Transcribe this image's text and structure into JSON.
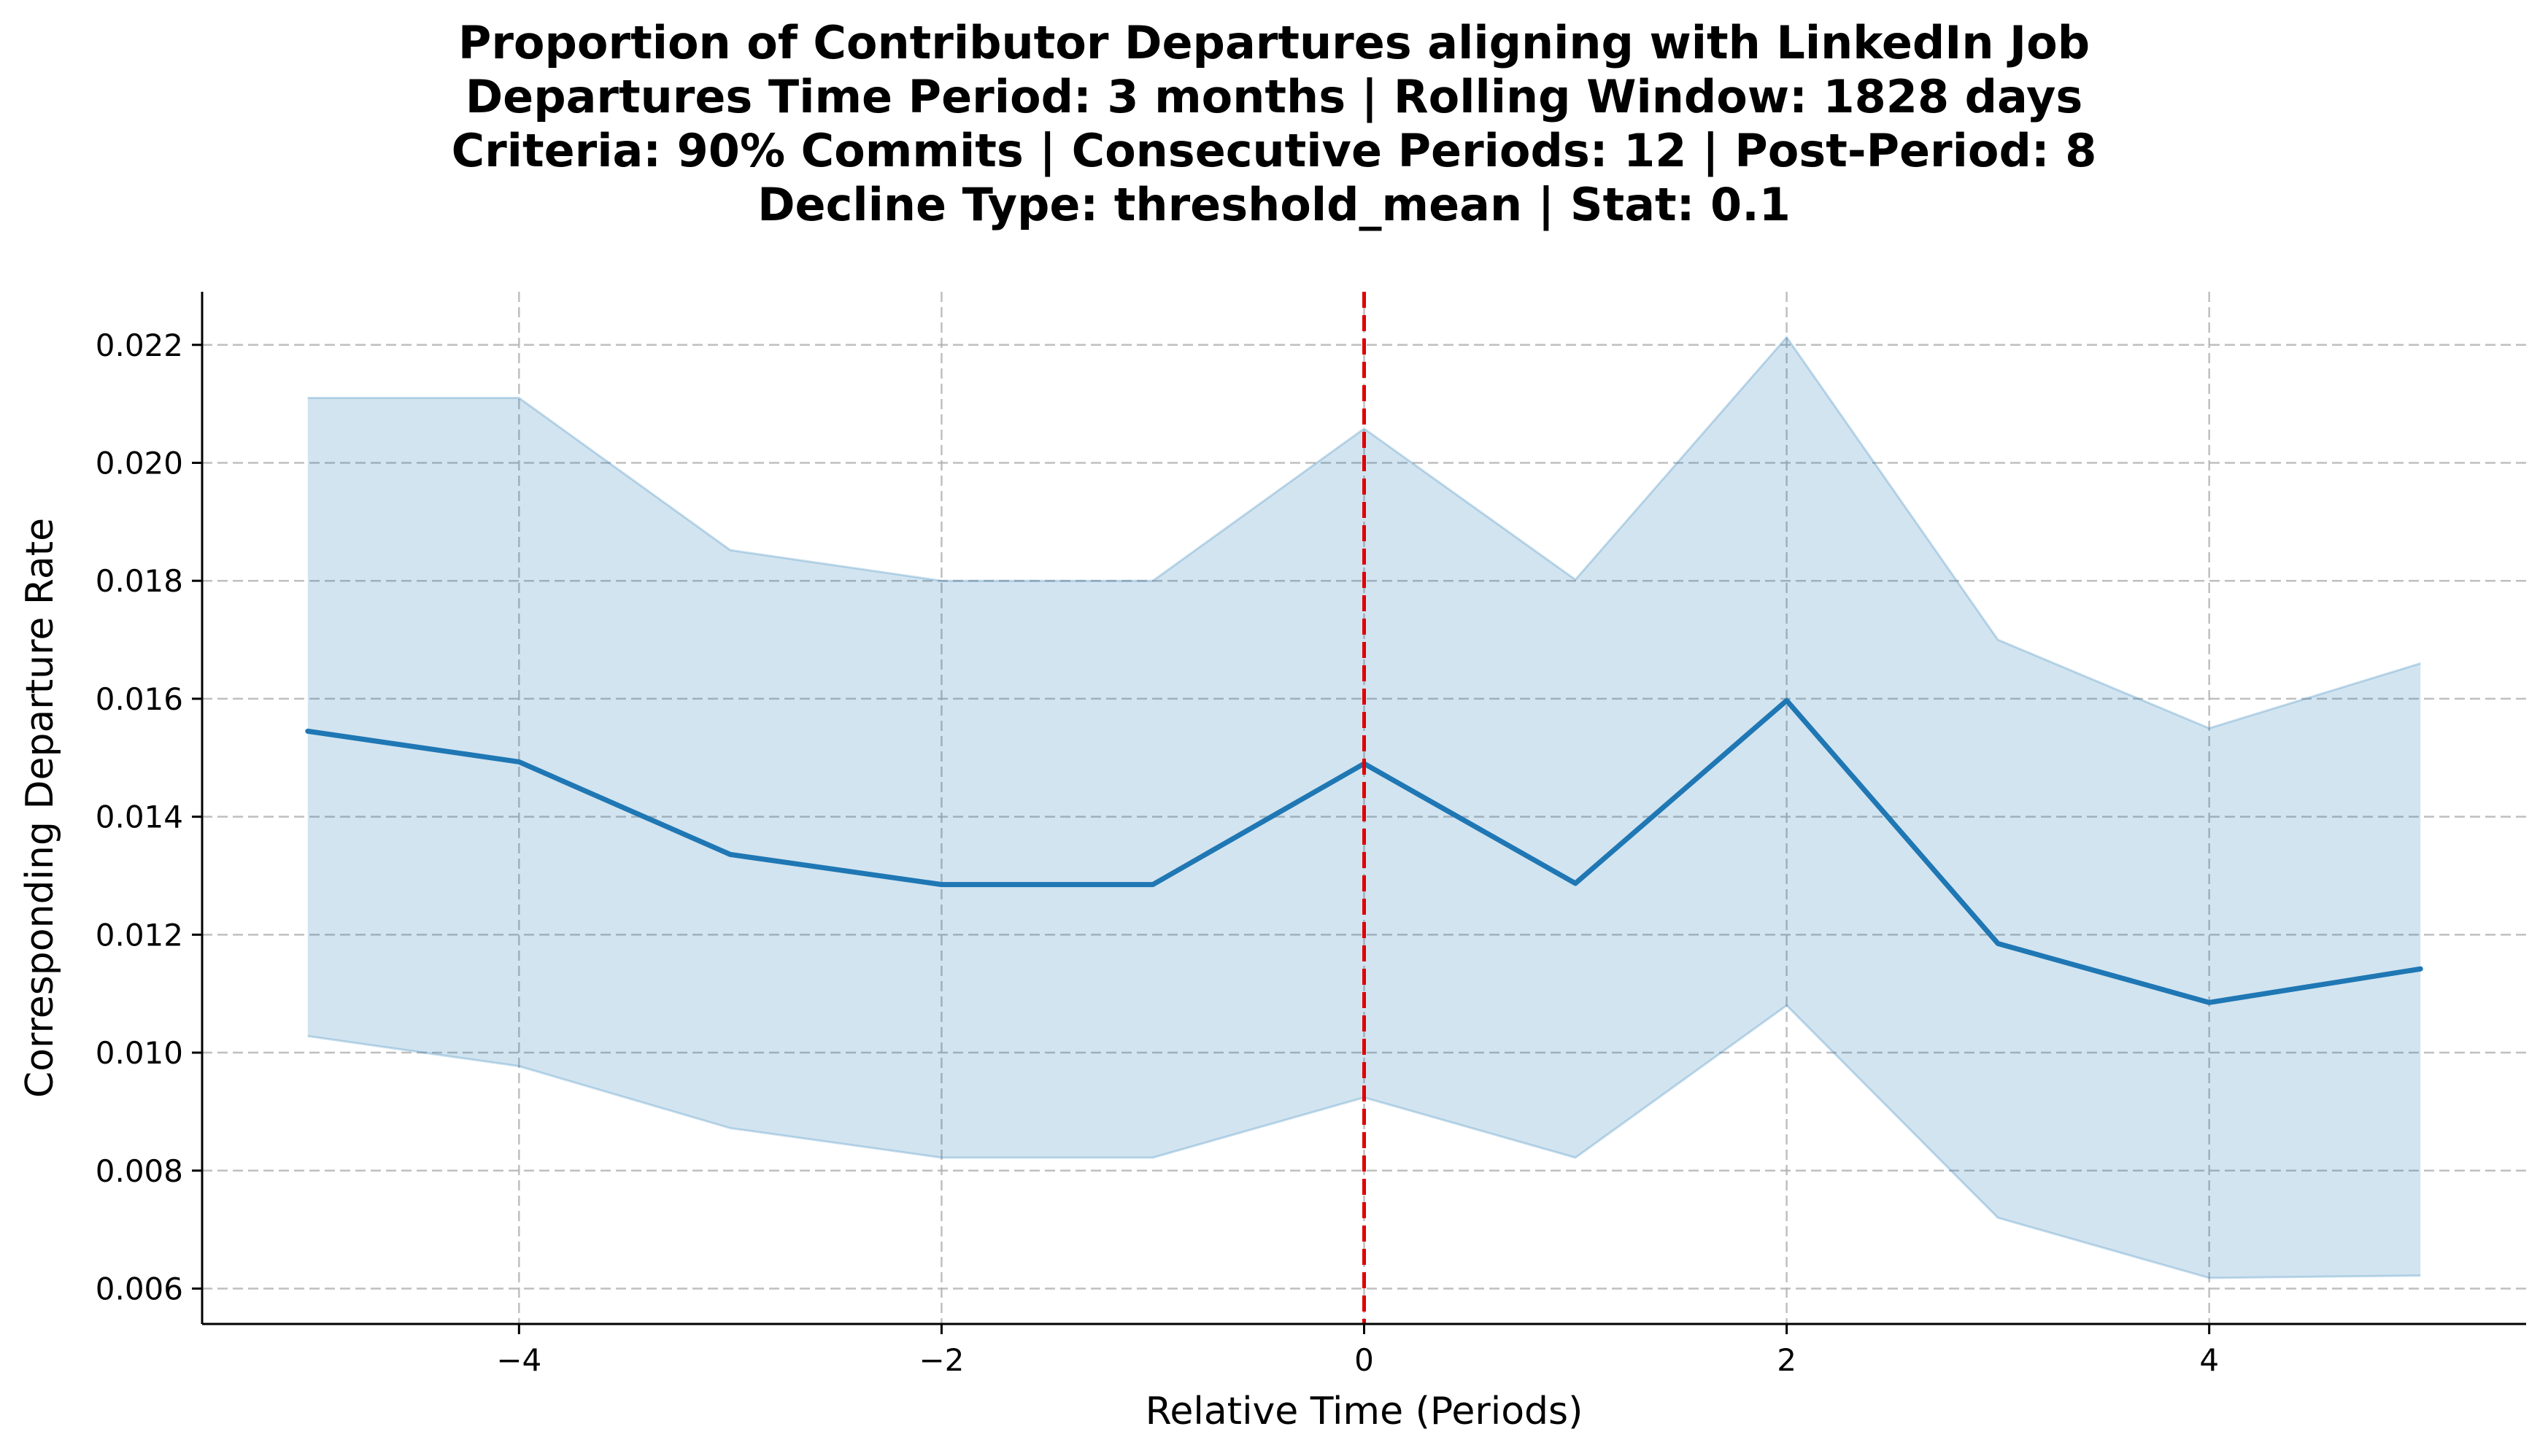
{
  "chart_data": {
    "type": "line",
    "title_lines": [
      "Proportion of Contributor Departures aligning with LinkedIn Job",
      "Departures Time Period: 3 months | Rolling Window: 1828 days",
      "Criteria: 90% Commits | Consecutive Periods: 12 | Post-Period: 8",
      "Decline Type: threshold_mean | Stat: 0.1"
    ],
    "xlabel": "Relative Time (Periods)",
    "ylabel": "Corresponding Departure Rate",
    "xlim": [
      -5.5,
      5.5
    ],
    "ylim": [
      0.0054,
      0.0229
    ],
    "x_ticks": [
      -4,
      -2,
      0,
      2,
      4
    ],
    "x_tick_labels": [
      "−4",
      "−2",
      "0",
      "2",
      "4"
    ],
    "y_ticks": [
      0.006,
      0.008,
      0.01,
      0.012,
      0.014,
      0.016,
      0.018,
      0.02,
      0.022
    ],
    "y_tick_labels": [
      "0.006",
      "0.008",
      "0.010",
      "0.012",
      "0.014",
      "0.016",
      "0.018",
      "0.020",
      "0.022"
    ],
    "grid": true,
    "series": [
      {
        "x": [
          -5,
          -4,
          -3,
          -2,
          -1,
          0,
          1,
          2,
          3,
          4,
          5
        ],
        "values": [
          0.01545,
          0.01493,
          0.01336,
          0.01285,
          0.01285,
          0.0149,
          0.01287,
          0.01597,
          0.01185,
          0.01085,
          0.01142
        ],
        "ci_lower": [
          0.01028,
          0.00977,
          0.00872,
          0.00822,
          0.00822,
          0.00924,
          0.00822,
          0.0108,
          0.0072,
          0.00618,
          0.00622
        ],
        "ci_upper": [
          0.0211,
          0.0211,
          0.01852,
          0.018,
          0.018,
          0.02058,
          0.01802,
          0.02213,
          0.017,
          0.0155,
          0.0166
        ],
        "color": "#1f77b4",
        "ci_color": "#1f77b4"
      }
    ],
    "reference_line": {
      "x": 0,
      "color": "#e00000",
      "style": "dashed"
    }
  }
}
